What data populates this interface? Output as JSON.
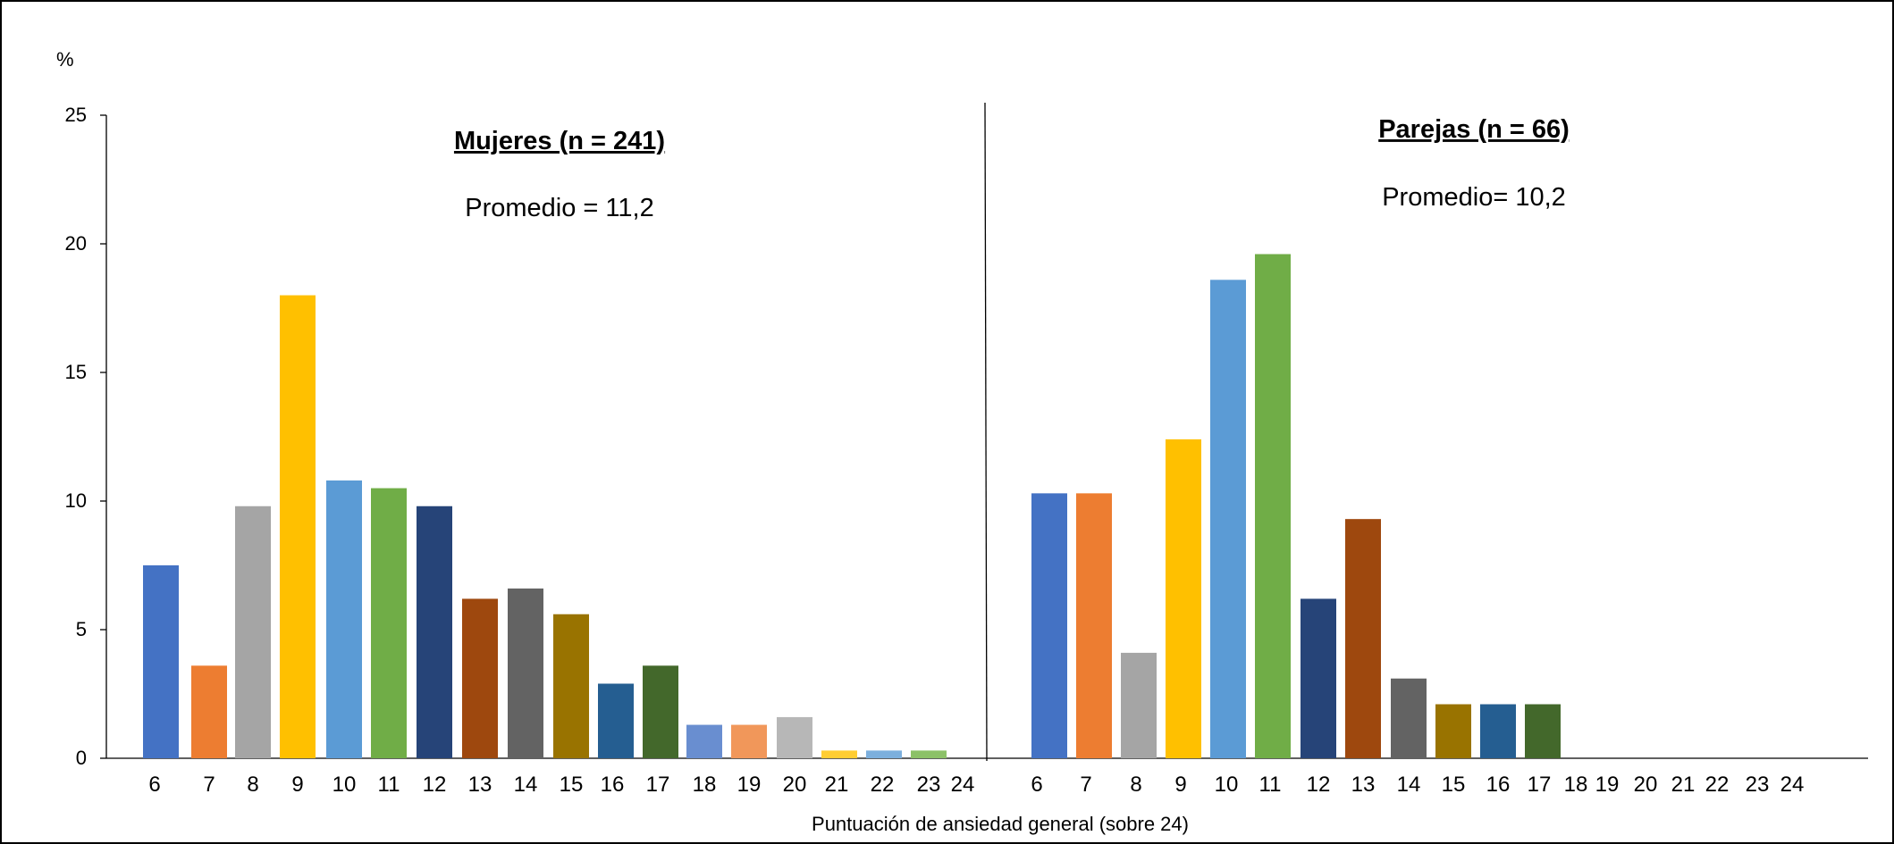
{
  "chart_data": {
    "type": "bar",
    "ylabel": "%",
    "xlabel": "Puntuación de ansiedad general (sobre 24)",
    "ylim": [
      0,
      25
    ],
    "yticks": [
      "0",
      "5",
      "10",
      "15",
      "20",
      "25"
    ],
    "grid": false,
    "panels": [
      {
        "title": "Mujeres (n = 241)",
        "note": "Promedio = 11,2",
        "categories": [
          "6",
          "7",
          "8",
          "9",
          "10",
          "11",
          "12",
          "13",
          "14",
          "15",
          "16",
          "17",
          "18",
          "19",
          "20",
          "21",
          "22",
          "23",
          "24"
        ],
        "values": [
          7.5,
          3.6,
          9.8,
          18.0,
          10.8,
          10.5,
          9.8,
          6.2,
          6.6,
          5.6,
          2.9,
          3.6,
          1.3,
          1.3,
          1.6,
          0.3,
          0.3,
          0.3,
          0
        ],
        "colors": [
          "#4472C4",
          "#ED7D31",
          "#A5A5A5",
          "#FFC000",
          "#5B9BD5",
          "#70AD47",
          "#264478",
          "#9E480E",
          "#636363",
          "#997300",
          "#255E91",
          "#43682B",
          "#698ED0",
          "#F1975A",
          "#B7B7B7",
          "#FFCD33",
          "#7CAFDD",
          "#8CC168",
          "#4472C4"
        ]
      },
      {
        "title": "Parejas (n = 66)",
        "note": "Promedio= 10,2",
        "categories": [
          "6",
          "7",
          "8",
          "9",
          "10",
          "11",
          "12",
          "13",
          "14",
          "15",
          "16",
          "17",
          "18",
          "19",
          "20",
          "21",
          "22",
          "23",
          "24"
        ],
        "values": [
          10.3,
          10.3,
          4.1,
          12.4,
          18.6,
          19.6,
          6.2,
          9.3,
          3.1,
          2.1,
          2.1,
          2.1,
          0,
          0,
          0,
          0,
          0,
          0,
          0
        ],
        "colors": [
          "#4472C4",
          "#ED7D31",
          "#A5A5A5",
          "#FFC000",
          "#5B9BD5",
          "#70AD47",
          "#264478",
          "#9E480E",
          "#636363",
          "#997300",
          "#255E91",
          "#43682B",
          "#698ED0",
          "#F1975A",
          "#B7B7B7",
          "#FFCD33",
          "#7CAFDD",
          "#8CC168",
          "#4472C4"
        ]
      }
    ]
  }
}
